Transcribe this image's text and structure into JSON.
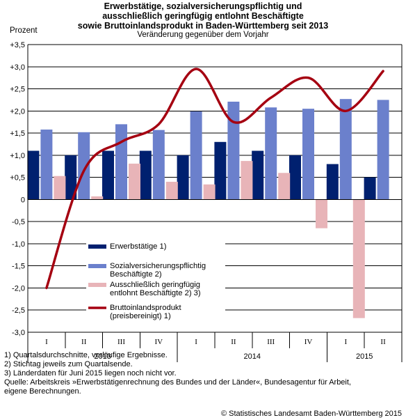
{
  "title_lines": [
    "Erwerbstätige, sozialversicherungspflichtig und",
    "ausschließlich geringfügig entlohnt Beschäftigte",
    "sowie Bruttoinlandsprodukt in Baden-Württemberg seit 2013"
  ],
  "subtitle": "Veränderung gegenüber dem Vorjahr",
  "unit_label": "Prozent",
  "colors": {
    "erwerbstaetige": "#00206f",
    "svb": "#6b80cc",
    "geringfuegig": "#e8b4b8",
    "bip": "#a50011",
    "grid": "#000000"
  },
  "chart_data": {
    "type": "bar",
    "title": "Erwerbstätige, sozialversicherungspflichtig und ausschließlich geringfügig entlohnt Beschäftigte sowie Bruttoinlandsprodukt in Baden-Württemberg seit 2013",
    "subtitle": "Veränderung gegenüber dem Vorjahr",
    "ylabel": "Prozent",
    "ylim": [
      -3.0,
      3.5
    ],
    "yticks": [
      "+3,5",
      "+3,0",
      "+2,5",
      "+2,0",
      "+1,5",
      "+1,0",
      "+0,5",
      "0",
      "-0,5",
      "-1,0",
      "-1,5",
      "-2,0",
      "-2,5",
      "-3,0"
    ],
    "ytick_values": [
      3.5,
      3.0,
      2.5,
      2.0,
      1.5,
      1.0,
      0.5,
      0,
      -0.5,
      -1.0,
      -1.5,
      -2.0,
      -2.5,
      -3.0
    ],
    "grid": "horizontal",
    "categories": [
      "I",
      "II",
      "III",
      "IV",
      "I",
      "II",
      "III",
      "IV",
      "I",
      "II"
    ],
    "years": [
      {
        "label": "2013",
        "quarters": 4
      },
      {
        "label": "2014",
        "quarters": 4
      },
      {
        "label": "2015",
        "quarters": 2
      }
    ],
    "series": [
      {
        "name": "Erwerbstätige 1)",
        "kind": "bar",
        "values": [
          1.1,
          1.0,
          1.1,
          1.1,
          1.0,
          1.3,
          1.1,
          1.0,
          0.8,
          0.5
        ]
      },
      {
        "name": "Sozialversicherungspflichtig Beschäftigte 2)",
        "kind": "bar",
        "values": [
          1.58,
          1.52,
          1.7,
          1.57,
          1.99,
          2.21,
          2.08,
          2.05,
          2.27,
          2.25
        ]
      },
      {
        "name": "Ausschließlich geringfügig entlohnt Beschäftigte 2) 3)",
        "kind": "bar",
        "values": [
          0.53,
          0.07,
          0.81,
          0.4,
          0.34,
          0.87,
          0.6,
          -0.65,
          -2.68,
          null
        ]
      },
      {
        "name": "Bruttoinlandsprodukt (preisbereinigt) 1)",
        "kind": "line",
        "values": [
          -2.0,
          0.65,
          1.3,
          1.7,
          2.95,
          1.75,
          2.3,
          2.75,
          2.0,
          2.9
        ]
      }
    ],
    "legend": {
      "placement": "bottom-left inside plot",
      "entries": [
        [
          "Erwerbstätige 1)"
        ],
        [
          "Sozialversicherungspflichtig",
          "Beschäftigte 2)"
        ],
        [
          "Ausschließlich geringfügig",
          "entlohnt Beschäftigte 2) 3)"
        ],
        [
          "Bruttoinlandsprodukt",
          "(preisbereinigt) 1)"
        ]
      ]
    }
  },
  "footnotes": [
    "1) Quartalsdurchschnitte, vorläufige Ergebnisse.",
    "2) Stichtag jeweils zum Quartalsende.",
    "3) Länderdaten für Juni 2015 liegen noch nicht vor.",
    "Quelle:   Arbeitskreis »Erwerbstätigenrechnung des Bundes und der Länder«, Bundesagentur für Arbeit,",
    "eigene Berechnungen."
  ],
  "copyright": "© Statistisches Landesamt Baden-Württemberg 2015"
}
